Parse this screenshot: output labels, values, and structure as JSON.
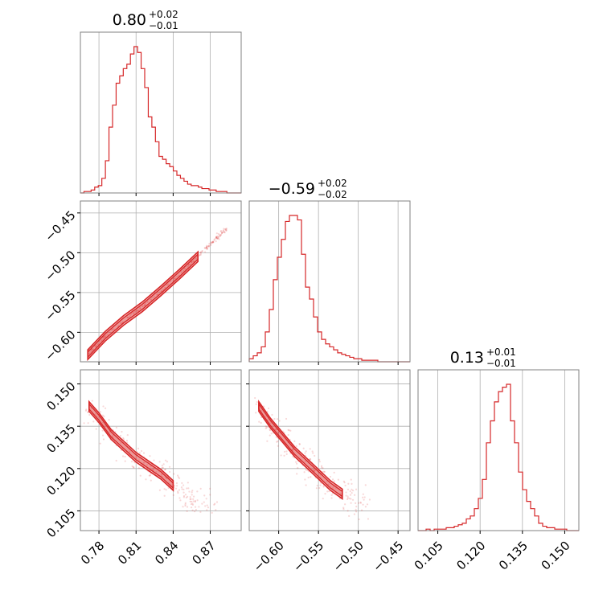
{
  "chart_data": {
    "type": "corner",
    "parameters": [
      {
        "median": "0.80",
        "upper": "+0.02",
        "lower": "−0.01",
        "range": [
          0.765,
          0.895
        ],
        "ticks": [
          0.78,
          0.81,
          0.84,
          0.87
        ],
        "tick_labels": [
          "0.78",
          "0.81",
          "0.84",
          "0.87"
        ]
      },
      {
        "median": "−0.59",
        "upper": "+0.02",
        "lower": "−0.02",
        "range": [
          -0.637,
          -0.435
        ],
        "ticks": [
          -0.6,
          -0.55,
          -0.5,
          -0.45
        ],
        "tick_labels": [
          "−0.60",
          "−0.55",
          "−0.50",
          "−0.45"
        ]
      },
      {
        "median": "0.13",
        "upper": "+0.01",
        "lower": "−0.01",
        "range": [
          0.098,
          0.155
        ],
        "ticks": [
          0.105,
          0.12,
          0.135,
          0.15
        ],
        "tick_labels": [
          "0.105",
          "0.120",
          "0.135",
          "0.150"
        ]
      }
    ],
    "histograms": [
      {
        "bins": [
          0.765,
          0.895
        ],
        "counts": [
          0,
          1,
          1,
          2,
          4,
          5,
          10,
          22,
          45,
          60,
          75,
          80,
          85,
          88,
          95,
          100,
          96,
          85,
          72,
          52,
          45,
          35,
          25,
          23,
          20,
          18,
          15,
          12,
          10,
          8,
          6,
          5,
          5,
          4,
          3,
          3,
          2,
          2,
          1,
          1,
          1,
          0,
          0,
          0,
          0
        ]
      },
      {
        "bins": [
          -0.637,
          -0.435
        ],
        "counts": [
          2,
          4,
          6,
          10,
          20,
          35,
          55,
          70,
          82,
          94,
          98,
          98,
          95,
          72,
          50,
          42,
          30,
          20,
          15,
          12,
          10,
          8,
          6,
          5,
          4,
          3,
          2,
          2,
          1,
          1,
          1,
          1,
          0,
          0,
          0,
          0,
          0,
          0,
          0,
          0
        ]
      },
      {
        "bins": [
          0.098,
          0.155
        ],
        "counts": [
          0,
          0,
          1,
          0,
          1,
          1,
          1,
          2,
          2,
          3,
          4,
          5,
          8,
          10,
          15,
          22,
          35,
          60,
          75,
          88,
          95,
          98,
          100,
          75,
          60,
          40,
          28,
          20,
          15,
          10,
          5,
          3,
          2,
          2,
          1,
          1,
          1,
          0,
          0,
          0
        ]
      }
    ],
    "ridges": {
      "1_0": [
        [
          0.771,
          -0.628
        ],
        [
          0.785,
          -0.605
        ],
        [
          0.8,
          -0.585
        ],
        [
          0.815,
          -0.568
        ],
        [
          0.83,
          -0.548
        ],
        [
          0.845,
          -0.527
        ],
        [
          0.86,
          -0.505
        ],
        [
          0.875,
          -0.482
        ],
        [
          0.884,
          -0.468
        ]
      ],
      "2_0": [
        [
          0.772,
          0.142
        ],
        [
          0.78,
          0.138
        ],
        [
          0.79,
          0.132
        ],
        [
          0.8,
          0.128
        ],
        [
          0.81,
          0.124
        ],
        [
          0.82,
          0.121
        ],
        [
          0.83,
          0.118
        ],
        [
          0.84,
          0.114
        ],
        [
          0.85,
          0.111
        ],
        [
          0.86,
          0.108
        ],
        [
          0.87,
          0.106
        ]
      ],
      "2_1": [
        [
          -0.625,
          0.142
        ],
        [
          -0.61,
          0.136
        ],
        [
          -0.595,
          0.131
        ],
        [
          -0.58,
          0.126
        ],
        [
          -0.565,
          0.122
        ],
        [
          -0.55,
          0.118
        ],
        [
          -0.535,
          0.114
        ],
        [
          -0.52,
          0.111
        ],
        [
          -0.505,
          0.108
        ],
        [
          -0.49,
          0.106
        ]
      ]
    },
    "color": "#d62728",
    "grid": true
  }
}
